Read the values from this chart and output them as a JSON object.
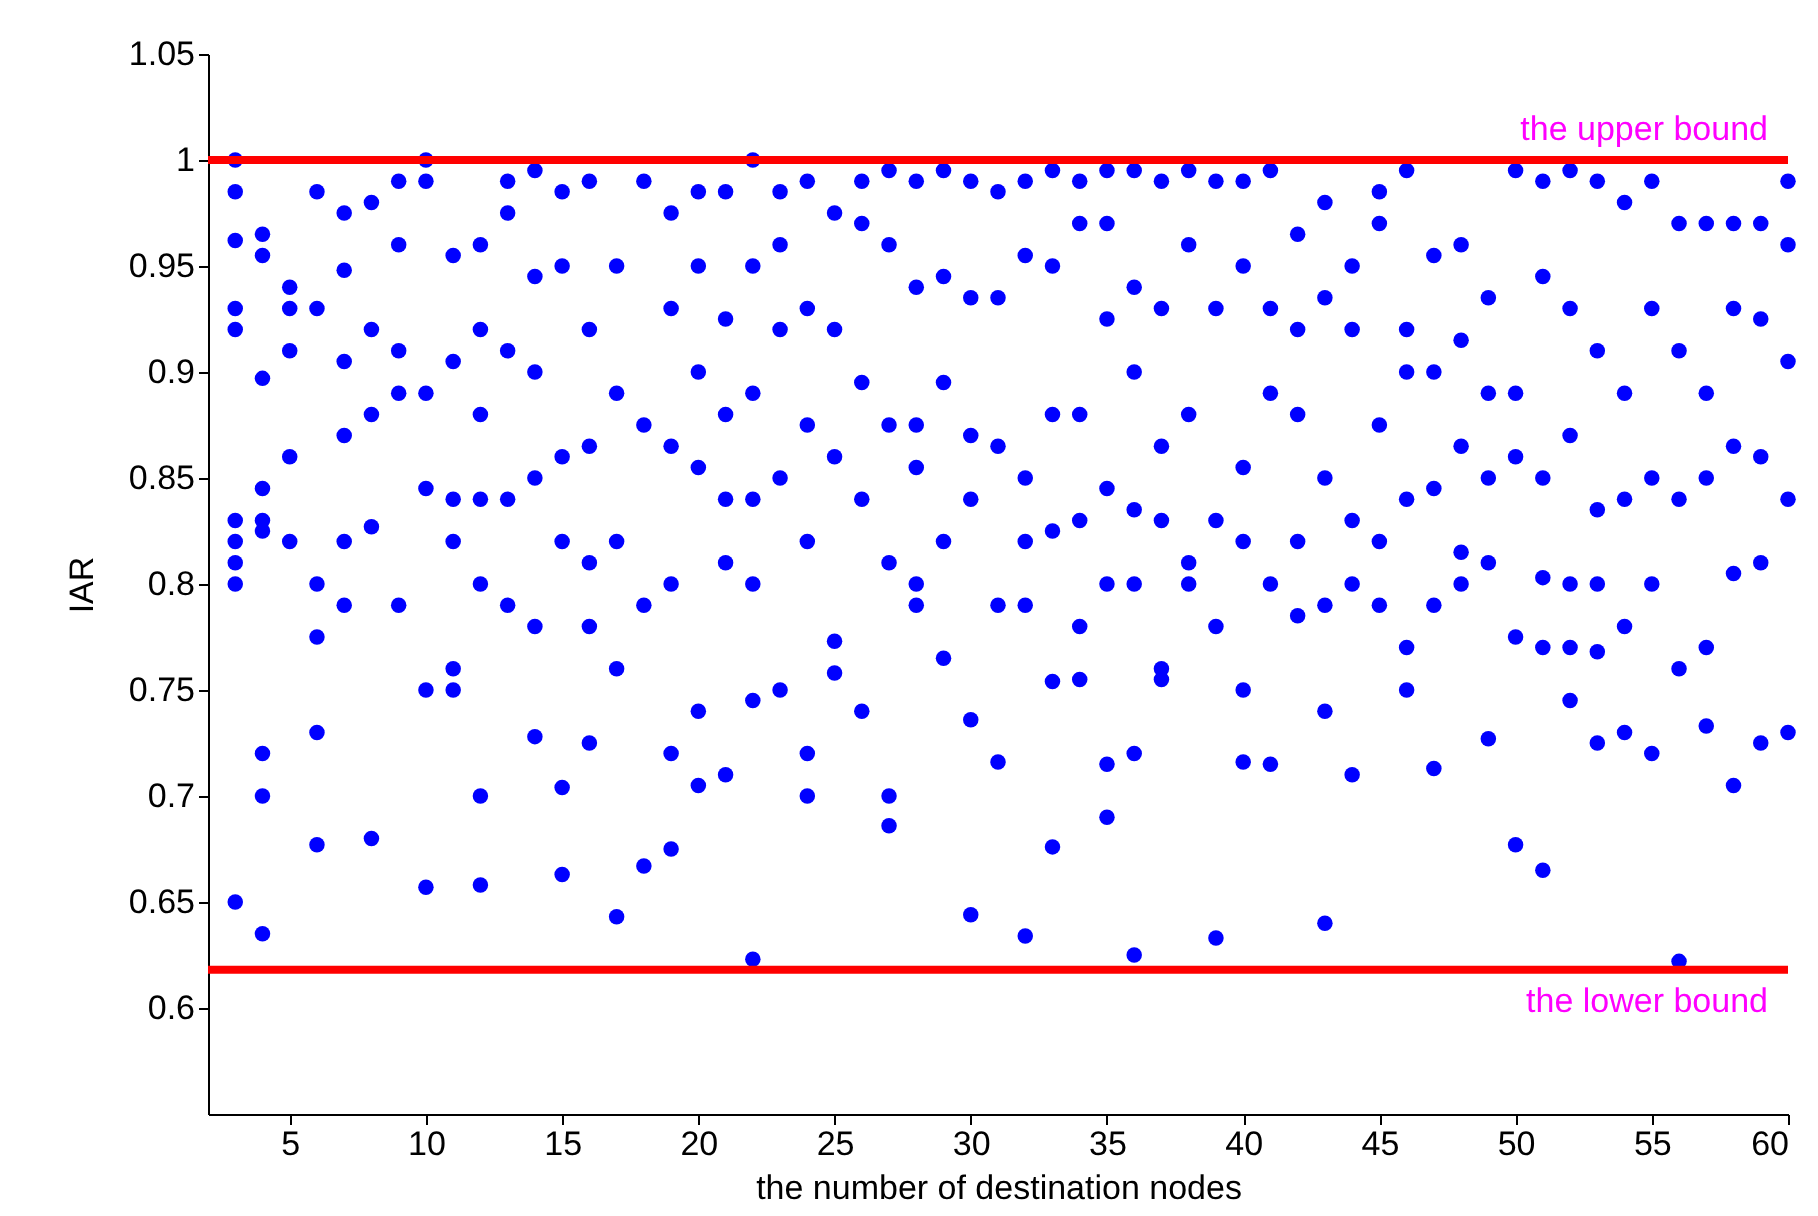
{
  "chart_data": {
    "type": "scatter",
    "xlabel": "the number of destination nodes",
    "ylabel": "IAR",
    "xlim": [
      2,
      60
    ],
    "xticks": [
      5,
      10,
      15,
      20,
      25,
      30,
      35,
      40,
      45,
      50,
      55,
      60
    ],
    "ylim": [
      0.55,
      1.05
    ],
    "yticks": [
      0.6,
      0.65,
      0.7,
      0.75,
      0.8,
      0.85,
      0.9,
      0.95,
      1,
      1.05
    ],
    "grid": false,
    "marker": "circle",
    "ref_lines": [
      {
        "axis": "y",
        "value": 1,
        "label": "the upper bound",
        "color": "#ff0000"
      },
      {
        "axis": "y",
        "value": 0.618,
        "label": "the lower bound",
        "color": "#ff0000"
      }
    ],
    "series": [
      {
        "color": "#0000ff",
        "x": [
          3,
          3,
          3,
          3,
          3,
          3,
          3,
          3,
          3,
          3,
          4,
          4,
          4,
          4,
          4,
          4,
          4,
          4,
          4,
          5,
          5,
          5,
          5,
          5,
          6,
          6,
          6,
          6,
          6,
          6,
          7,
          7,
          7,
          7,
          7,
          7,
          8,
          8,
          8,
          8,
          8,
          9,
          9,
          9,
          9,
          9,
          10,
          10,
          10,
          10,
          10,
          10,
          11,
          11,
          11,
          11,
          11,
          11,
          12,
          12,
          12,
          12,
          12,
          12,
          12,
          13,
          13,
          13,
          13,
          13,
          14,
          14,
          14,
          14,
          14,
          14,
          15,
          15,
          15,
          15,
          15,
          15,
          16,
          16,
          16,
          16,
          16,
          16,
          17,
          17,
          17,
          17,
          17,
          18,
          18,
          18,
          18,
          19,
          19,
          19,
          19,
          19,
          19,
          20,
          20,
          20,
          20,
          20,
          20,
          21,
          21,
          21,
          21,
          21,
          21,
          22,
          22,
          22,
          22,
          22,
          22,
          22,
          23,
          23,
          23,
          23,
          23,
          24,
          24,
          24,
          24,
          24,
          24,
          25,
          25,
          25,
          25,
          25,
          26,
          26,
          26,
          26,
          26,
          27,
          27,
          27,
          27,
          27,
          27,
          28,
          28,
          28,
          28,
          28,
          28,
          29,
          29,
          29,
          29,
          29,
          30,
          30,
          30,
          30,
          30,
          30,
          31,
          31,
          31,
          31,
          31,
          32,
          32,
          32,
          32,
          32,
          32,
          33,
          33,
          33,
          33,
          33,
          33,
          34,
          34,
          34,
          34,
          34,
          34,
          35,
          35,
          35,
          35,
          35,
          35,
          35,
          36,
          36,
          36,
          36,
          36,
          36,
          36,
          37,
          37,
          37,
          37,
          37,
          37,
          38,
          38,
          38,
          38,
          38,
          39,
          39,
          39,
          39,
          39,
          40,
          40,
          40,
          40,
          40,
          40,
          41,
          41,
          41,
          41,
          41,
          42,
          42,
          42,
          42,
          42,
          43,
          43,
          43,
          43,
          43,
          43,
          44,
          44,
          44,
          44,
          44,
          45,
          45,
          45,
          45,
          45,
          46,
          46,
          46,
          46,
          46,
          46,
          47,
          47,
          47,
          47,
          47,
          48,
          48,
          48,
          48,
          48,
          49,
          49,
          49,
          49,
          49,
          50,
          50,
          50,
          50,
          50,
          51,
          51,
          51,
          51,
          51,
          51,
          52,
          52,
          52,
          52,
          52,
          52,
          53,
          53,
          53,
          53,
          53,
          53,
          54,
          54,
          54,
          54,
          54,
          55,
          55,
          55,
          55,
          55,
          56,
          56,
          56,
          56,
          56,
          57,
          57,
          57,
          57,
          57,
          58,
          58,
          58,
          58,
          58,
          59,
          59,
          59,
          59,
          59,
          60,
          60,
          60,
          60,
          60
        ],
        "values": [
          1.0,
          0.985,
          0.962,
          0.93,
          0.92,
          0.83,
          0.82,
          0.81,
          0.8,
          0.65,
          0.965,
          0.955,
          0.897,
          0.845,
          0.83,
          0.825,
          0.72,
          0.7,
          0.635,
          0.94,
          0.93,
          0.91,
          0.86,
          0.82,
          0.985,
          0.93,
          0.8,
          0.775,
          0.73,
          0.677,
          0.975,
          0.948,
          0.905,
          0.87,
          0.82,
          0.79,
          0.98,
          0.92,
          0.88,
          0.827,
          0.68,
          0.99,
          0.96,
          0.91,
          0.89,
          0.79,
          1.0,
          0.99,
          0.89,
          0.845,
          0.75,
          0.657,
          0.955,
          0.905,
          0.84,
          0.82,
          0.76,
          0.75,
          0.96,
          0.92,
          0.88,
          0.84,
          0.8,
          0.7,
          0.658,
          0.99,
          0.975,
          0.91,
          0.84,
          0.79,
          0.995,
          0.945,
          0.9,
          0.85,
          0.78,
          0.728,
          0.985,
          0.95,
          0.86,
          0.82,
          0.704,
          0.663,
          0.99,
          0.92,
          0.865,
          0.81,
          0.78,
          0.725,
          0.95,
          0.89,
          0.82,
          0.76,
          0.643,
          0.99,
          0.875,
          0.79,
          0.667,
          0.975,
          0.93,
          0.865,
          0.8,
          0.72,
          0.675,
          0.985,
          0.95,
          0.9,
          0.855,
          0.74,
          0.705,
          0.985,
          0.925,
          0.88,
          0.84,
          0.81,
          0.71,
          1.0,
          0.95,
          0.89,
          0.84,
          0.8,
          0.745,
          0.623,
          0.985,
          0.96,
          0.92,
          0.85,
          0.75,
          0.99,
          0.93,
          0.875,
          0.82,
          0.72,
          0.7,
          0.975,
          0.92,
          0.86,
          0.773,
          0.758,
          0.99,
          0.97,
          0.895,
          0.84,
          0.74,
          0.995,
          0.96,
          0.875,
          0.81,
          0.7,
          0.686,
          0.99,
          0.94,
          0.875,
          0.855,
          0.8,
          0.79,
          0.995,
          0.945,
          0.895,
          0.82,
          0.765,
          0.99,
          0.935,
          0.87,
          0.84,
          0.736,
          0.644,
          0.985,
          0.935,
          0.865,
          0.79,
          0.716,
          0.99,
          0.955,
          0.85,
          0.82,
          0.79,
          0.634,
          0.995,
          0.95,
          0.88,
          0.825,
          0.754,
          0.676,
          0.99,
          0.97,
          0.88,
          0.83,
          0.78,
          0.755,
          0.995,
          0.97,
          0.925,
          0.845,
          0.8,
          0.715,
          0.69,
          0.995,
          0.94,
          0.9,
          0.835,
          0.8,
          0.72,
          0.625,
          0.99,
          0.93,
          0.865,
          0.83,
          0.76,
          0.755,
          0.995,
          0.96,
          0.88,
          0.81,
          0.8,
          0.99,
          0.93,
          0.83,
          0.78,
          0.633,
          0.99,
          0.95,
          0.855,
          0.82,
          0.75,
          0.716,
          0.995,
          0.93,
          0.89,
          0.8,
          0.715,
          0.965,
          0.92,
          0.88,
          0.82,
          0.785,
          0.98,
          0.935,
          0.85,
          0.79,
          0.74,
          0.64,
          0.95,
          0.92,
          0.83,
          0.8,
          0.71,
          0.985,
          0.97,
          0.875,
          0.82,
          0.79,
          0.995,
          0.92,
          0.9,
          0.84,
          0.77,
          0.75,
          0.955,
          0.9,
          0.845,
          0.79,
          0.713,
          0.96,
          0.915,
          0.865,
          0.815,
          0.8,
          0.935,
          0.89,
          0.85,
          0.81,
          0.727,
          0.995,
          0.89,
          0.86,
          0.775,
          0.677,
          0.99,
          0.945,
          0.85,
          0.803,
          0.77,
          0.665,
          0.995,
          0.93,
          0.87,
          0.8,
          0.77,
          0.745,
          0.99,
          0.91,
          0.835,
          0.8,
          0.768,
          0.725,
          0.98,
          0.89,
          0.84,
          0.78,
          0.73,
          0.99,
          0.93,
          0.85,
          0.8,
          0.72,
          0.97,
          0.91,
          0.84,
          0.76,
          0.622,
          0.97,
          0.89,
          0.85,
          0.77,
          0.733,
          0.97,
          0.93,
          0.865,
          0.805,
          0.705,
          0.97,
          0.925,
          0.86,
          0.81,
          0.725,
          0.99,
          0.96,
          0.905,
          0.84,
          0.73
        ]
      }
    ]
  }
}
